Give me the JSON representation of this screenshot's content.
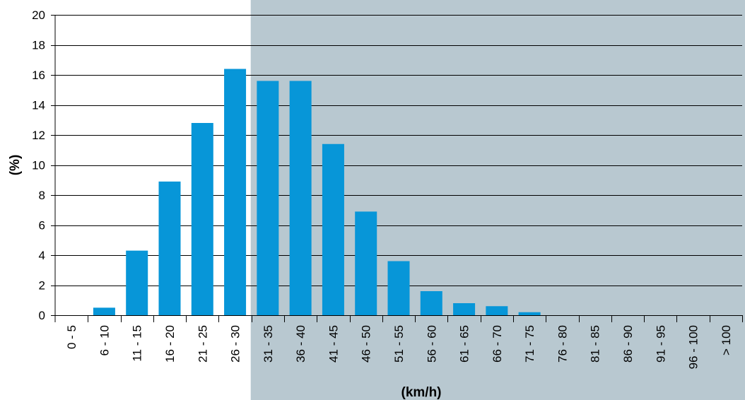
{
  "chart_data": {
    "type": "bar",
    "title": "",
    "xlabel": "(km/h)",
    "ylabel": "(%)",
    "ylim": [
      0,
      20
    ],
    "yticks": [
      0,
      2,
      4,
      6,
      8,
      10,
      12,
      14,
      16,
      18,
      20
    ],
    "grid": true,
    "categories": [
      "0 - 5",
      "6 - 10",
      "11 - 15",
      "16 - 20",
      "21 - 25",
      "26 - 30",
      "31 - 35",
      "36 - 40",
      "41 - 45",
      "46 - 50",
      "51 - 55",
      "56 - 60",
      "61 - 65",
      "66 - 70",
      "71 - 75",
      "76 - 80",
      "81 - 85",
      "86 - 90",
      "91 - 95",
      "96 - 100",
      "> 100"
    ],
    "values": [
      0,
      0.5,
      4.3,
      8.9,
      12.8,
      16.4,
      15.6,
      15.6,
      11.4,
      6.9,
      3.6,
      1.6,
      0.8,
      0.6,
      0.2,
      0,
      0,
      0,
      0,
      0,
      0
    ],
    "shaded_from_category": "31 - 35",
    "colors": {
      "bar": "#0796d8",
      "shade": "#b8c8d0",
      "grid": "#000000",
      "text": "#000000"
    }
  }
}
